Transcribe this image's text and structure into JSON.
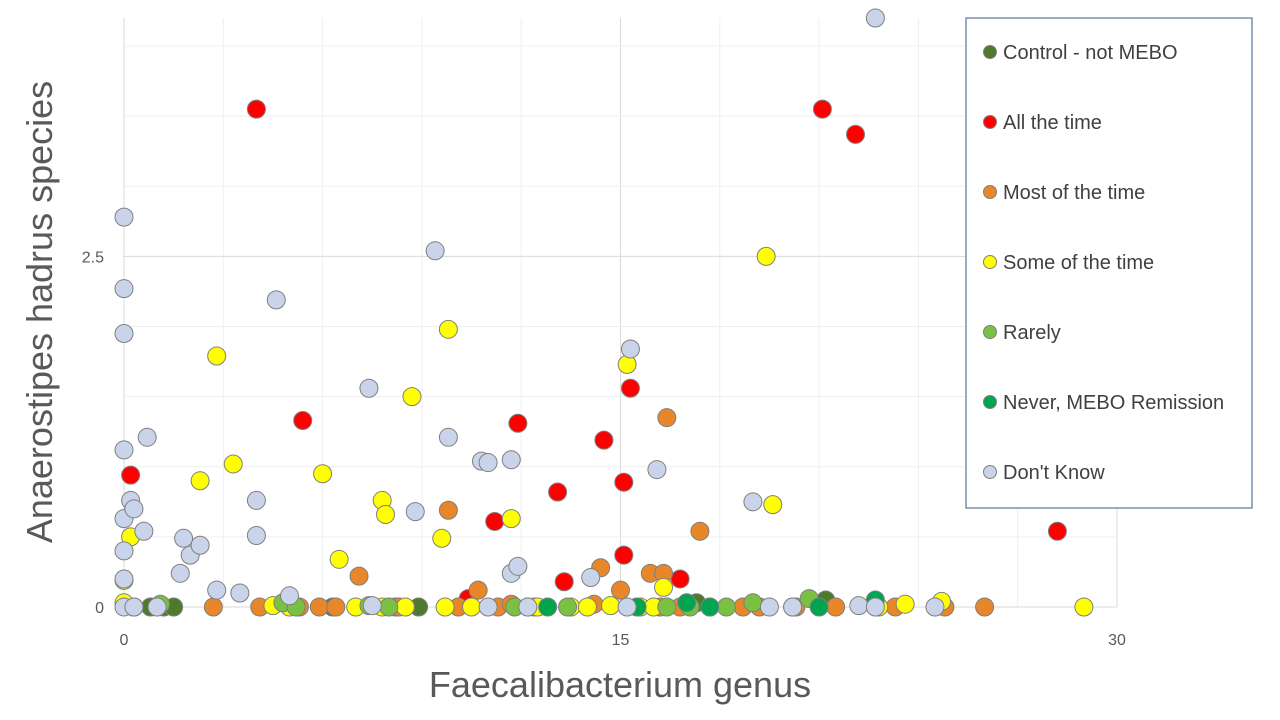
{
  "chart_data": {
    "type": "scatter",
    "title": "",
    "xlabel": "Faecalibacterium genus",
    "ylabel": "Anaerostipes hadrus species",
    "xlim": [
      0,
      30
    ],
    "ylim": [
      0,
      4.2
    ],
    "xticks": [
      "0",
      "15",
      "30"
    ],
    "yticks": [
      "0",
      "2.5"
    ],
    "grid": true,
    "legend_position": "right",
    "series": [
      {
        "name": "Control - not MEBO",
        "color": "#4e7a2e",
        "points": [
          [
            0.3,
            0
          ],
          [
            0.8,
            0
          ],
          [
            1.2,
            0
          ],
          [
            1.5,
            0
          ],
          [
            6.3,
            0
          ],
          [
            8.2,
            0
          ],
          [
            8.9,
            0
          ],
          [
            17.3,
            0.03
          ],
          [
            21.2,
            0.05
          ]
        ]
      },
      {
        "name": "All the time",
        "color": "#ff0000",
        "points": [
          [
            0.2,
            0.94
          ],
          [
            4.0,
            3.55
          ],
          [
            5.4,
            1.33
          ],
          [
            10.4,
            0.06
          ],
          [
            11.2,
            0.61
          ],
          [
            11.9,
            1.31
          ],
          [
            12.2,
            0
          ],
          [
            13.1,
            0.82
          ],
          [
            13.3,
            0.18
          ],
          [
            14.5,
            1.19
          ],
          [
            15.1,
            0.89
          ],
          [
            15.1,
            0.37
          ],
          [
            15.3,
            1.56
          ],
          [
            16.8,
            0.2
          ],
          [
            17.7,
            0
          ],
          [
            21.1,
            3.55
          ],
          [
            22.1,
            3.37
          ],
          [
            28.2,
            0.54
          ]
        ]
      },
      {
        "name": "Most of the time",
        "color": "#e8862a",
        "points": [
          [
            2.7,
            0
          ],
          [
            4.1,
            0
          ],
          [
            5.3,
            0
          ],
          [
            5.9,
            0
          ],
          [
            6.4,
            0
          ],
          [
            7.1,
            0.22
          ],
          [
            8.3,
            0
          ],
          [
            9.8,
            0.69
          ],
          [
            10.1,
            0
          ],
          [
            10.7,
            0.12
          ],
          [
            11.3,
            0
          ],
          [
            11.7,
            0.02
          ],
          [
            12.4,
            0
          ],
          [
            14.2,
            0.02
          ],
          [
            14.4,
            0.28
          ],
          [
            15.0,
            0.12
          ],
          [
            15.9,
            0.24
          ],
          [
            16.2,
            0
          ],
          [
            16.3,
            0.24
          ],
          [
            16.4,
            1.35
          ],
          [
            16.8,
            0
          ],
          [
            17.4,
            0.54
          ],
          [
            18.7,
            0
          ],
          [
            19.2,
            0
          ],
          [
            20.3,
            0
          ],
          [
            21.5,
            0
          ],
          [
            23.3,
            0
          ],
          [
            24.8,
            0
          ],
          [
            26.0,
            0
          ]
        ]
      },
      {
        "name": "Some of the time",
        "color": "#ffff00",
        "points": [
          [
            0,
            0.03
          ],
          [
            0,
            0.19
          ],
          [
            0.2,
            0.5
          ],
          [
            0.3,
            0
          ],
          [
            2.8,
            1.79
          ],
          [
            2.3,
            0.9
          ],
          [
            3.3,
            1.02
          ],
          [
            4.5,
            0.01
          ],
          [
            5.0,
            0
          ],
          [
            6.0,
            0.95
          ],
          [
            6.5,
            0.34
          ],
          [
            7.0,
            0
          ],
          [
            7.8,
            0
          ],
          [
            7.8,
            0.76
          ],
          [
            7.9,
            0.66
          ],
          [
            8.5,
            0
          ],
          [
            8.7,
            1.5
          ],
          [
            9.6,
            0.49
          ],
          [
            9.7,
            0
          ],
          [
            9.8,
            1.98
          ],
          [
            10.5,
            0
          ],
          [
            11.7,
            0.63
          ],
          [
            12.5,
            0
          ],
          [
            13.5,
            0
          ],
          [
            14.0,
            0
          ],
          [
            14.7,
            0.01
          ],
          [
            15.2,
            1.73
          ],
          [
            15.6,
            0
          ],
          [
            16.0,
            0
          ],
          [
            16.3,
            0.14
          ],
          [
            19.4,
            2.5
          ],
          [
            19.6,
            0.73
          ],
          [
            22.8,
            0
          ],
          [
            23.6,
            0.02
          ],
          [
            24.7,
            0.04
          ],
          [
            29.0,
            0
          ]
        ]
      },
      {
        "name": "Rarely",
        "color": "#7ac143",
        "points": [
          [
            1.1,
            0.02
          ],
          [
            4.8,
            0.03
          ],
          [
            5.2,
            0
          ],
          [
            7.4,
            0.01
          ],
          [
            8.0,
            0
          ],
          [
            11.8,
            0
          ],
          [
            13.4,
            0
          ],
          [
            16.4,
            0
          ],
          [
            17.1,
            0
          ],
          [
            18.2,
            0
          ],
          [
            19.0,
            0.03
          ],
          [
            20.2,
            0
          ],
          [
            20.7,
            0.06
          ]
        ]
      },
      {
        "name": "Never, MEBO Remission",
        "color": "#00a64f",
        "points": [
          [
            12.8,
            0
          ],
          [
            15.5,
            0
          ],
          [
            17.0,
            0.03
          ],
          [
            17.7,
            0
          ],
          [
            21.0,
            0
          ],
          [
            22.7,
            0.05
          ]
        ]
      },
      {
        "name": "Don't Know",
        "color": "#c9d4ea",
        "points": [
          [
            0,
            0
          ],
          [
            0,
            0.2
          ],
          [
            0,
            0.4
          ],
          [
            0,
            0.63
          ],
          [
            0,
            1.12
          ],
          [
            0,
            1.95
          ],
          [
            0,
            2.27
          ],
          [
            0,
            2.78
          ],
          [
            0.2,
            0.76
          ],
          [
            0.3,
            0
          ],
          [
            0.3,
            0.7
          ],
          [
            0.6,
            0.54
          ],
          [
            0.7,
            1.21
          ],
          [
            1.0,
            0
          ],
          [
            1.7,
            0.24
          ],
          [
            1.8,
            0.49
          ],
          [
            2.0,
            0.37
          ],
          [
            2.3,
            0.44
          ],
          [
            2.8,
            0.12
          ],
          [
            3.5,
            0.1
          ],
          [
            4.0,
            0.51
          ],
          [
            4.0,
            0.76
          ],
          [
            4.6,
            2.19
          ],
          [
            5.0,
            0.08
          ],
          [
            7.4,
            1.56
          ],
          [
            7.5,
            0.01
          ],
          [
            8.8,
            0.68
          ],
          [
            9.4,
            2.54
          ],
          [
            9.8,
            1.21
          ],
          [
            10.8,
            1.04
          ],
          [
            11.0,
            1.03
          ],
          [
            11.0,
            0
          ],
          [
            11.7,
            1.05
          ],
          [
            11.7,
            0.24
          ],
          [
            11.9,
            0.29
          ],
          [
            12.2,
            0
          ],
          [
            14.1,
            0.21
          ],
          [
            15.2,
            0
          ],
          [
            15.3,
            1.84
          ],
          [
            16.1,
            0.98
          ],
          [
            19.0,
            0.75
          ],
          [
            19.5,
            0
          ],
          [
            20.2,
            0
          ],
          [
            22.2,
            0.01
          ],
          [
            22.7,
            0
          ],
          [
            22.7,
            4.2
          ],
          [
            24.5,
            0
          ]
        ]
      }
    ]
  }
}
